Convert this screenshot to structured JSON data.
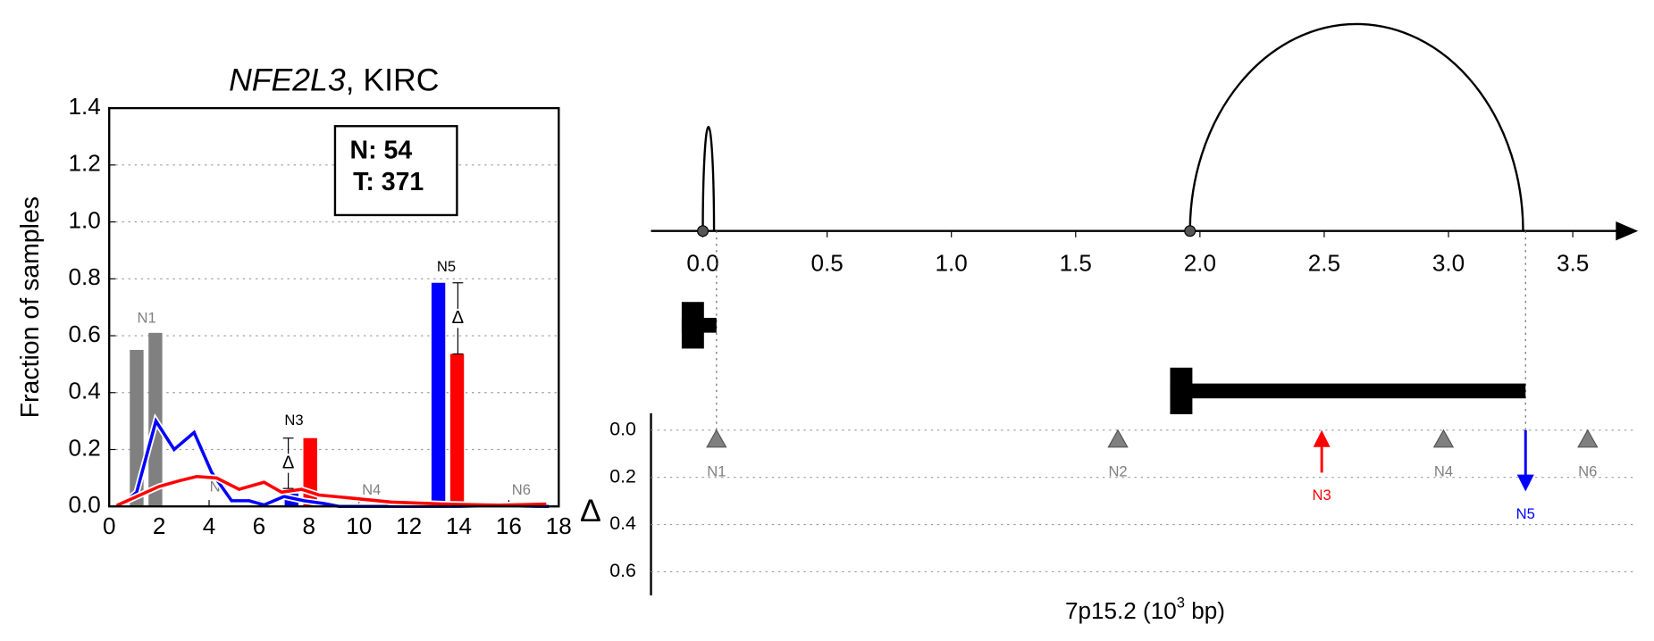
{
  "chart_data": [
    {
      "type": "bar-line",
      "title": {
        "gene": "NFE2L3",
        "rest": ", KIRC"
      },
      "ylabel": "Fraction of samples",
      "box_lines": [
        "N: 54",
        "T: 371"
      ],
      "xlim": [
        0,
        18
      ],
      "xticks": [
        0,
        2,
        4,
        6,
        8,
        10,
        12,
        14,
        16,
        18
      ],
      "ylim": [
        0,
        1.4
      ],
      "yticks": [
        {
          "value": 0,
          "label": "0.0"
        },
        0.2,
        0.4,
        0.6,
        0.8,
        {
          "value": 1,
          "label": "1.0"
        },
        1.2,
        1.4
      ],
      "grid": true,
      "bars": [
        {
          "x": 1.1,
          "value": 0.55,
          "color": "#808080"
        },
        {
          "x": 1.85,
          "value": 0.61,
          "color": "#808080"
        },
        {
          "x": 7.3,
          "value": 0.045,
          "color": "#0000ff"
        },
        {
          "x": 8.05,
          "value": 0.24,
          "color": "#ff0000"
        },
        {
          "x": 13.18,
          "value": 0.786,
          "color": "#0000ff"
        },
        {
          "x": 13.93,
          "value": 0.536,
          "color": "#ff0000"
        }
      ],
      "series": [
        {
          "color": "#0000ff",
          "x": [
            0.5,
            1.1,
            1.87,
            2.6,
            3.4,
            4.1,
            4.9,
            5.6,
            6.2,
            7.0,
            7.8,
            8.6,
            9.2,
            17.6
          ],
          "values": [
            0.005,
            0.05,
            0.3,
            0.2,
            0.26,
            0.12,
            0.02,
            0.02,
            0.005,
            0.035,
            0.02,
            0.01,
            0,
            0
          ]
        },
        {
          "color": "#ff0000",
          "x": [
            0.3,
            2.0,
            2.8,
            3.5,
            4.3,
            5.2,
            6.2,
            6.9,
            7.7,
            8.4,
            9.6,
            11.3,
            13.5,
            15.6,
            17.5
          ],
          "values": [
            0.003,
            0.07,
            0.09,
            0.105,
            0.1,
            0.06,
            0.085,
            0.05,
            0.06,
            0.04,
            0.03,
            0.015,
            0.008,
            0.004,
            0.008
          ]
        }
      ],
      "deltas": [
        {
          "x": 7.17,
          "from": 0.24,
          "to": 0.063,
          "label": "Δ"
        },
        {
          "x": 13.96,
          "from": 0.786,
          "to": 0.536,
          "label": "Δ"
        }
      ],
      "site_labels": [
        {
          "text": "N1",
          "x": 1.5,
          "y": 0.66,
          "color": "#808080"
        },
        {
          "text": "N2",
          "x": 4.4,
          "y": 0.067,
          "color": "#808080"
        },
        {
          "text": "N3",
          "x": 7.4,
          "y": 0.3,
          "color": "#000000"
        },
        {
          "text": "N4",
          "x": 10.5,
          "y": 0.055,
          "color": "#808080"
        },
        {
          "text": "N5",
          "x": 13.5,
          "y": 0.84,
          "color": "#000000"
        },
        {
          "text": "N6",
          "x": 16.5,
          "y": 0.055,
          "color": "#808080"
        }
      ]
    },
    {
      "type": "genome-track",
      "xlabel": {
        "pre": "7p15.2 (10",
        "sup": "3",
        "post": " bp)"
      },
      "ylabel": "Δ",
      "xlim": [
        -0.2,
        3.75
      ],
      "xticks": [
        {
          "value": 0,
          "label": "0.0"
        },
        0.5,
        {
          "value": 1,
          "label": "1.0"
        },
        1.5,
        {
          "value": 2,
          "label": "2.0"
        },
        2.5,
        {
          "value": 3,
          "label": "3.0"
        },
        3.5
      ],
      "ylim": [
        0,
        0.7
      ],
      "yticks": [
        {
          "value": 0,
          "label": "0.0"
        },
        0.2,
        0.4,
        0.6
      ],
      "grid": true,
      "arcs": [
        {
          "start": 0,
          "end": 0.045
        },
        {
          "start": 1.96,
          "end": 3.3
        }
      ],
      "genes": [
        {
          "start": -0.085,
          "end": 0.055
        },
        {
          "start": 1.88,
          "end": 3.31
        }
      ],
      "sites": [
        {
          "name": "N1",
          "x": 0.055,
          "delta": null,
          "direction": null,
          "color": "#808080"
        },
        {
          "name": "N2",
          "x": 1.67,
          "delta": null,
          "direction": null,
          "color": "#808080"
        },
        {
          "name": "N3",
          "x": 2.49,
          "delta": 0.18,
          "direction": "up",
          "color": "#ff0000"
        },
        {
          "name": "N4",
          "x": 2.98,
          "delta": null,
          "direction": null,
          "color": "#808080"
        },
        {
          "name": "N5",
          "x": 3.31,
          "delta": 0.26,
          "direction": "down",
          "color": "#0000ff"
        },
        {
          "name": "N6",
          "x": 3.56,
          "delta": null,
          "direction": null,
          "color": "#808080"
        }
      ]
    }
  ]
}
